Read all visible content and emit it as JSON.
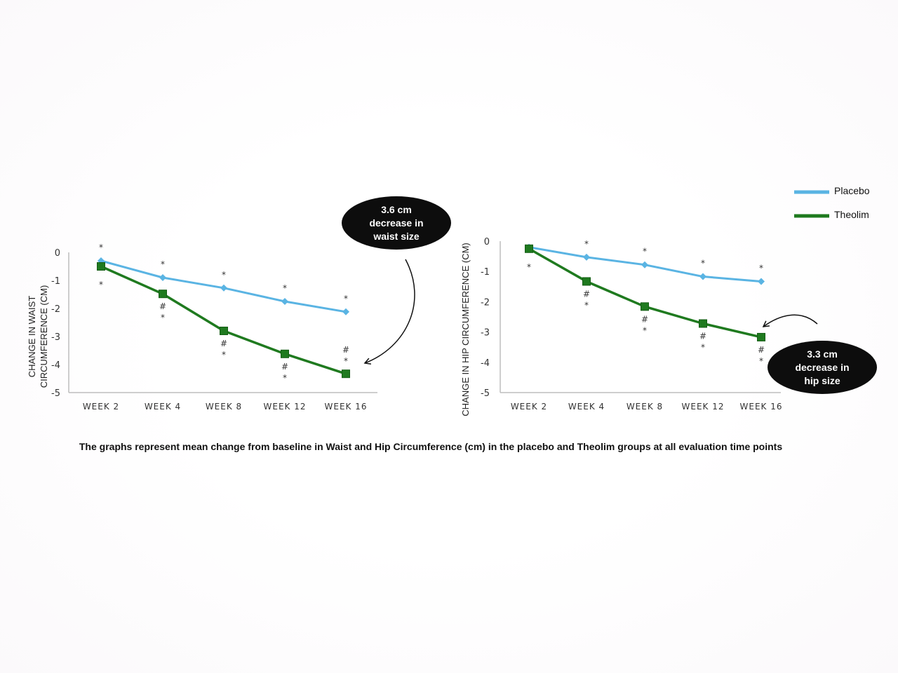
{
  "chart_data": [
    {
      "type": "line",
      "ylabel": "CHANGE IN WAIST CIRCUMFERENCE (CM)",
      "ylabel_lines": [
        "CHANGE IN WAIST",
        "CIRCUMFERENCE (CM)"
      ],
      "ylim": [
        -5,
        0
      ],
      "yticks": [
        "0",
        "-1",
        "-2",
        "-3",
        "-4",
        "-5"
      ],
      "categories": [
        "WEEK 2",
        "WEEK 4",
        "WEEK 8",
        "WEEK 12",
        "WEEK 16"
      ],
      "series": [
        {
          "name": "Placebo",
          "values": [
            -0.3,
            -0.9,
            -1.27,
            -1.75,
            -2.12
          ]
        },
        {
          "name": "Theolim",
          "values": [
            -0.5,
            -1.48,
            -2.8,
            -3.62,
            -4.33
          ]
        }
      ],
      "annotations": {
        "placebo_marks": [
          "*",
          "*",
          "*",
          "*",
          "*"
        ],
        "theolim_marks": [
          [
            "*"
          ],
          [
            "#",
            "*"
          ],
          [
            "#",
            "*"
          ],
          [
            "#",
            "*"
          ],
          [
            "#",
            "*"
          ]
        ]
      },
      "callout": [
        "3.6 cm",
        "decrease in",
        "waist size"
      ]
    },
    {
      "type": "line",
      "ylabel": "CHANGE IN HIP CIRCUMFERENCE (CM)",
      "ylim": [
        -5,
        0
      ],
      "yticks": [
        "0",
        "-1",
        "-2",
        "-3",
        "-4",
        "-5"
      ],
      "categories": [
        "WEEK 2",
        "WEEK 4",
        "WEEK 8",
        "WEEK 12",
        "WEEK 16"
      ],
      "series": [
        {
          "name": "Placebo",
          "values": [
            -0.2,
            -0.53,
            -0.78,
            -1.17,
            -1.33
          ]
        },
        {
          "name": "Theolim",
          "values": [
            -0.25,
            -1.33,
            -2.16,
            -2.72,
            -3.17
          ]
        }
      ],
      "annotations": {
        "placebo_marks": [
          "",
          "*",
          "*",
          "*",
          "*"
        ],
        "theolim_marks": [
          [
            "*"
          ],
          [
            "#",
            "*"
          ],
          [
            "#",
            "*"
          ],
          [
            "#",
            "*"
          ],
          [
            "#",
            "*"
          ]
        ]
      },
      "callout": [
        "3.3 cm",
        "decrease in",
        "hip size"
      ]
    }
  ],
  "legend": [
    {
      "label": "Placebo",
      "color": "#5ab4e3"
    },
    {
      "label": "Theolim",
      "color": "#1f7a1f"
    }
  ],
  "colors": {
    "placebo": "#5ab4e3",
    "theolim": "#1f7a1f",
    "axis": "#bdbdbd",
    "callout": "#0d0d0d"
  },
  "caption": "The graphs represent mean change from baseline in Waist and Hip Circumference (cm) in the placebo and Theolim groups at all evaluation time points"
}
